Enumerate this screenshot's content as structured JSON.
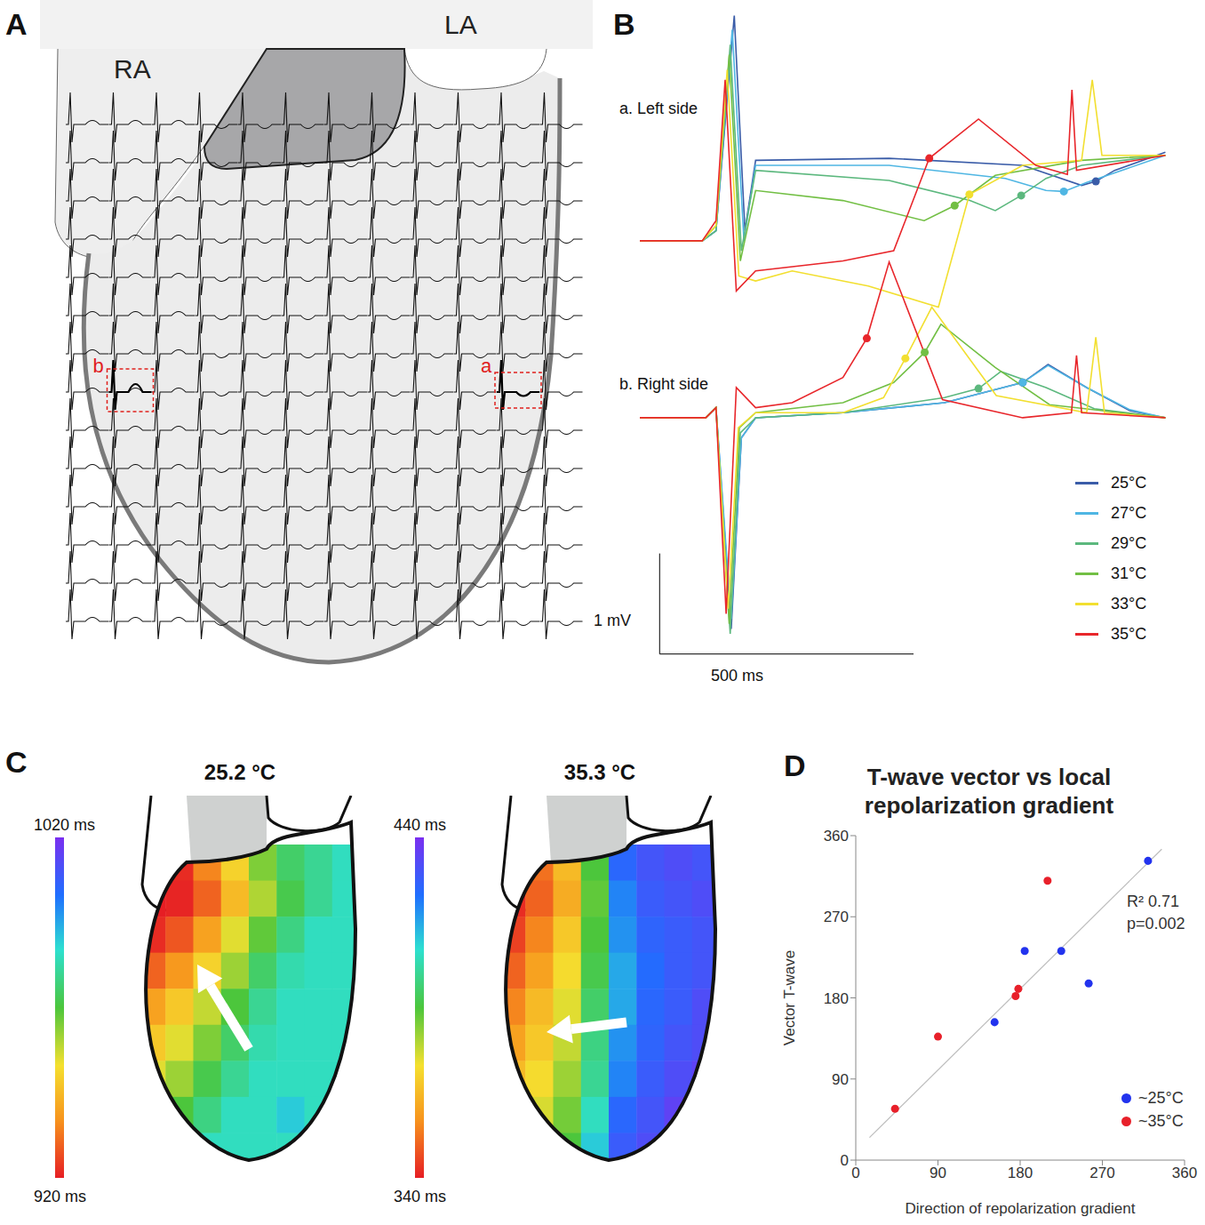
{
  "panel_letters": [
    "A",
    "B",
    "C",
    "D"
  ],
  "panel_A": {
    "chambers": [
      "RA",
      "LA"
    ],
    "insets": [
      "a",
      "b"
    ]
  },
  "chart_data": [
    {
      "type": "line",
      "title": "a. Left side",
      "xlim": [
        0,
        1050
      ],
      "ylim": [
        -0.85,
        2.35
      ],
      "tick_labels": false,
      "series": [
        {
          "name": "25°C",
          "color": "#3a5ca8",
          "x": [
            0,
            123,
            150,
            186,
            207,
            228,
            491,
            754,
            870,
            898,
            935,
            1035
          ],
          "values": [
            0,
            0,
            0.1,
            2.24,
            0.1,
            0.8,
            0.82,
            0.75,
            0.55,
            0.59,
            0.7,
            0.88
          ],
          "dot": {
            "x": 898,
            "y": 0.59
          }
        },
        {
          "name": "27°C",
          "color": "#4fb6e3",
          "x": [
            0,
            123,
            150,
            182,
            205,
            228,
            491,
            720,
            800,
            835,
            880,
            1035
          ],
          "values": [
            0,
            0,
            0.1,
            2.1,
            0.0,
            0.75,
            0.75,
            0.62,
            0.5,
            0.49,
            0.58,
            0.85
          ],
          "dot": {
            "x": 835,
            "y": 0.49
          }
        },
        {
          "name": "29°C",
          "color": "#5cb87e",
          "x": [
            0,
            123,
            150,
            178,
            200,
            228,
            491,
            650,
            700,
            751,
            800,
            870,
            1035
          ],
          "values": [
            0,
            0,
            0.1,
            1.95,
            -0.1,
            0.7,
            0.6,
            0.4,
            0.3,
            0.45,
            0.62,
            0.75,
            0.85
          ],
          "dot": {
            "x": 751,
            "y": 0.45
          }
        },
        {
          "name": "31°C",
          "color": "#72bf44",
          "x": [
            0,
            123,
            150,
            176,
            198,
            228,
            400,
            560,
            620,
            700,
            870,
            1035
          ],
          "values": [
            0,
            0,
            0.15,
            1.85,
            -0.2,
            0.5,
            0.4,
            0.2,
            0.35,
            0.65,
            0.8,
            0.85
          ],
          "dot": {
            "x": 620,
            "y": 0.35
          }
        },
        {
          "name": "33°C",
          "color": "#f2df30",
          "x": [
            0,
            123,
            150,
            172,
            195,
            228,
            300,
            450,
            588,
            649,
            754,
            870,
            891,
            910,
            1035
          ],
          "values": [
            0,
            0,
            0.15,
            1.7,
            -0.35,
            -0.4,
            -0.3,
            -0.45,
            -0.66,
            0.46,
            0.75,
            0.8,
            1.6,
            0.85,
            0.85
          ],
          "dot": {
            "x": 649,
            "y": 0.46
          }
        },
        {
          "name": "35°C",
          "color": "#e8262b",
          "x": [
            0,
            123,
            150,
            168,
            190,
            228,
            400,
            500,
            570,
            667,
            780,
            842,
            851,
            860,
            1035
          ],
          "values": [
            0,
            0,
            0.2,
            1.6,
            -0.5,
            -0.3,
            -0.2,
            -0.1,
            0.82,
            1.21,
            0.75,
            0.66,
            1.5,
            0.7,
            0.85
          ],
          "dot": {
            "x": 570,
            "y": 0.82
          }
        }
      ]
    },
    {
      "type": "line",
      "title": "b. Right side",
      "xlim": [
        0,
        1050
      ],
      "ylim": [
        -2.45,
        1.75
      ],
      "tick_labels": false,
      "legend": "lower right",
      "scale_bar": {
        "y_value": 1,
        "y_label": "1 mV",
        "x_value": 500,
        "x_label": "500 ms"
      },
      "series": [
        {
          "name": "25°C",
          "color": "#3a5ca8",
          "x": [
            0,
            130,
            150,
            180,
            200,
            228,
            400,
            600,
            754,
            804,
            880,
            965,
            1035
          ],
          "values": [
            0,
            0,
            0.1,
            -2.1,
            -0.2,
            0,
            0.05,
            0.15,
            0.35,
            0.53,
            0.3,
            0.07,
            0
          ],
          "dot": {
            "x": 754,
            "y": 0.35
          }
        },
        {
          "name": "27°C",
          "color": "#4fb6e3",
          "x": [
            0,
            130,
            150,
            180,
            200,
            228,
            400,
            600,
            754,
            804,
            880,
            965,
            1035
          ],
          "values": [
            0,
            0,
            0.1,
            -2.0,
            -0.2,
            0,
            0.05,
            0.15,
            0.35,
            0.52,
            0.3,
            0.08,
            0
          ],
          "dot": {
            "x": 754,
            "y": 0.35
          }
        },
        {
          "name": "29°C",
          "color": "#5cb87e",
          "x": [
            0,
            130,
            150,
            178,
            198,
            228,
            400,
            600,
            667,
            711,
            800,
            895,
            1035
          ],
          "values": [
            0,
            0,
            0.1,
            -2.15,
            -0.15,
            0,
            0.05,
            0.2,
            0.29,
            0.46,
            0.3,
            0.09,
            0
          ],
          "dot": {
            "x": 667,
            "y": 0.29
          }
        },
        {
          "name": "31°C",
          "color": "#72bf44",
          "x": [
            0,
            130,
            150,
            176,
            196,
            228,
            400,
            500,
            561,
            593,
            700,
            807,
            1035
          ],
          "values": [
            0,
            0,
            0.1,
            -2.05,
            -0.1,
            0.05,
            0.15,
            0.35,
            0.65,
            0.93,
            0.5,
            0.13,
            0
          ],
          "dot": {
            "x": 561,
            "y": 0.65
          }
        },
        {
          "name": "33°C",
          "color": "#f2df30",
          "x": [
            0,
            130,
            150,
            174,
            194,
            228,
            400,
            480,
            523,
            575,
            702,
            880,
            898,
            915,
            1035
          ],
          "values": [
            0,
            0,
            0.1,
            -1.9,
            -0.1,
            0.05,
            0.05,
            0.2,
            0.59,
            1.1,
            0.22,
            0.05,
            0.8,
            0.05,
            0
          ],
          "dot": {
            "x": 523,
            "y": 0.59
          }
        },
        {
          "name": "35°C",
          "color": "#e8262b",
          "x": [
            0,
            130,
            150,
            170,
            190,
            228,
            300,
            400,
            447,
            491,
            596,
            754,
            850,
            860,
            870,
            1035
          ],
          "values": [
            0,
            0,
            0.1,
            -1.95,
            0.3,
            0.1,
            0.15,
            0.4,
            0.79,
            1.55,
            0.18,
            0,
            0.05,
            0.62,
            0.05,
            0
          ],
          "dot": {
            "x": 447,
            "y": 0.79
          }
        }
      ]
    },
    {
      "type": "scatter",
      "title": "T-wave vector vs local repolarization gradient",
      "x_label": "Direction of repolarization gradient",
      "y_label": "Vector T-wave",
      "xlim": [
        0,
        360
      ],
      "ylim": [
        0,
        360
      ],
      "xticks": [
        0,
        90,
        180,
        270,
        360
      ],
      "yticks": [
        0,
        90,
        180,
        270,
        360
      ],
      "legend": "lower right",
      "annotations": [
        "R² 0.71",
        "p=0.002"
      ],
      "fit_line": {
        "x": [
          15,
          335
        ],
        "y": [
          25,
          345
        ]
      },
      "series": [
        {
          "name": "~25°C",
          "color": "#2233ee",
          "x": [
            152,
            185,
            225,
            255,
            320
          ],
          "values": [
            153,
            232,
            232,
            196,
            332
          ]
        },
        {
          "name": "~35°C",
          "color": "#e8202a",
          "x": [
            43,
            90,
            175,
            178,
            210
          ],
          "values": [
            57,
            137,
            182,
            190,
            310
          ]
        }
      ]
    }
  ],
  "panel_C": {
    "maps": [
      {
        "title": "25.2 °C",
        "colorbar": {
          "range": [
            920,
            1020
          ],
          "ticks": [
            {
              "value": 1020,
              "label": "1020 ms"
            },
            {
              "value": 920,
              "label": "920 ms"
            }
          ]
        },
        "cells": [
          [
            925,
            922,
            935,
            950,
            965,
            975,
            980,
            985
          ],
          [
            920,
            921,
            930,
            945,
            960,
            972,
            980,
            985
          ],
          [
            922,
            928,
            940,
            955,
            968,
            978,
            985,
            985
          ],
          [
            930,
            938,
            950,
            962,
            975,
            983,
            985,
            985
          ],
          [
            940,
            948,
            958,
            970,
            980,
            985,
            985,
            985
          ],
          [
            948,
            955,
            965,
            975,
            983,
            985,
            985,
            985
          ],
          [
            955,
            962,
            972,
            980,
            985,
            985,
            985,
            985
          ],
          [
            962,
            970,
            978,
            985,
            985,
            990,
            985,
            985
          ],
          [
            970,
            978,
            985,
            985,
            985,
            985,
            985,
            985
          ]
        ]
      },
      {
        "title": "35.3 °C",
        "colorbar": {
          "range": [
            340,
            440
          ],
          "ticks": [
            {
              "value": 440,
              "label": "440 ms"
            },
            {
              "value": 340,
              "label": "340 ms"
            }
          ]
        },
        "cells": [
          [
            345,
            352,
            365,
            390,
            425,
            430,
            432,
            430
          ],
          [
            342,
            350,
            362,
            388,
            420,
            428,
            430,
            432
          ],
          [
            345,
            355,
            368,
            390,
            418,
            426,
            428,
            430
          ],
          [
            350,
            360,
            372,
            392,
            415,
            424,
            428,
            430
          ],
          [
            355,
            365,
            375,
            395,
            415,
            425,
            428,
            432
          ],
          [
            360,
            368,
            378,
            398,
            418,
            426,
            430,
            432
          ],
          [
            365,
            372,
            382,
            400,
            420,
            428,
            432,
            435
          ],
          [
            370,
            376,
            386,
            405,
            425,
            430,
            435,
            435
          ],
          [
            375,
            380,
            390,
            410,
            428,
            432,
            435,
            435
          ]
        ]
      }
    ]
  }
}
